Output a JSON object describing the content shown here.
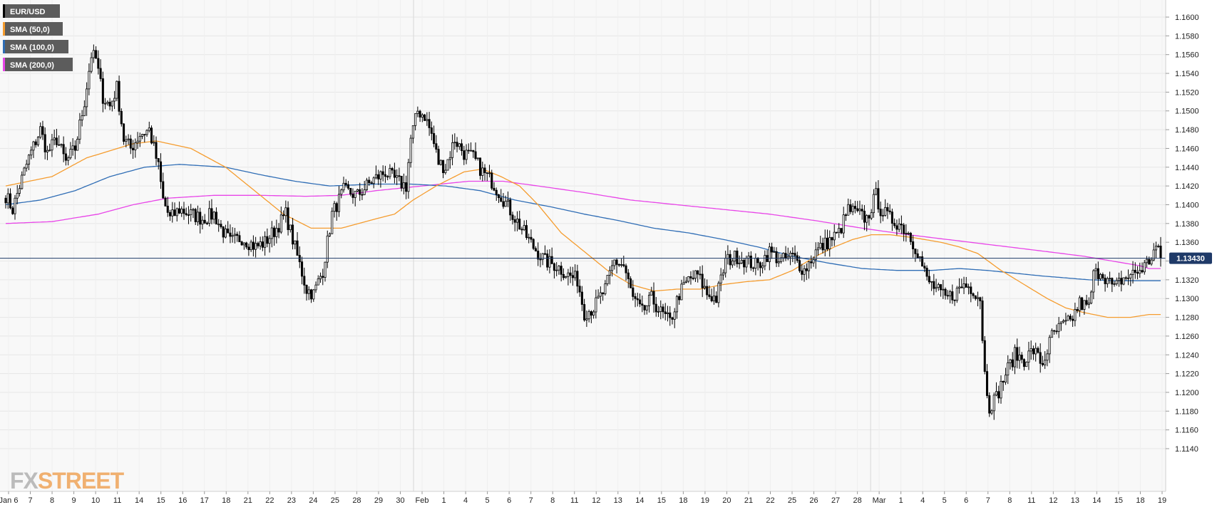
{
  "chart_data": {
    "type": "candlestick",
    "symbol": "EUR/USD",
    "timeframe": "4h",
    "ylim": [
      1.113,
      1.161
    ],
    "y_ticks": [
      "1.1600",
      "1.1580",
      "1.1560",
      "1.1540",
      "1.1520",
      "1.1500",
      "1.1480",
      "1.1460",
      "1.1440",
      "1.1420",
      "1.1400",
      "1.1380",
      "1.1360",
      "1.1340",
      "1.1320",
      "1.1300",
      "1.1280",
      "1.1260",
      "1.1240",
      "1.1220",
      "1.1200",
      "1.1180",
      "1.1160",
      "1.1140"
    ],
    "x_ticks": [
      "Jan 6",
      "7",
      "8",
      "9",
      "10",
      "11",
      "14",
      "15",
      "16",
      "17",
      "18",
      "21",
      "22",
      "23",
      "24",
      "25",
      "28",
      "29",
      "30",
      "Feb",
      "1",
      "4",
      "5",
      "6",
      "7",
      "8",
      "11",
      "12",
      "13",
      "14",
      "15",
      "18",
      "19",
      "20",
      "21",
      "22",
      "25",
      "26",
      "27",
      "28",
      "Mar",
      "1",
      "4",
      "5",
      "6",
      "7",
      "8",
      "11",
      "12",
      "13",
      "14",
      "15",
      "18",
      "19"
    ],
    "month_breaks": [
      "Feb",
      "Mar"
    ],
    "current_price": "1.13430",
    "legend": [
      {
        "label": "EUR/USD",
        "color": "#000000"
      },
      {
        "label": "SMA (50,0)",
        "color": "#f59c2e"
      },
      {
        "label": "SMA (100,0)",
        "color": "#2f6db5"
      },
      {
        "label": "SMA (200,0)",
        "color": "#e845e8"
      }
    ],
    "close_path": [
      [
        0,
        1.141
      ],
      [
        3,
        1.1395
      ],
      [
        6,
        1.142
      ],
      [
        10,
        1.145
      ],
      [
        15,
        1.148
      ],
      [
        18,
        1.1455
      ],
      [
        22,
        1.147
      ],
      [
        26,
        1.1445
      ],
      [
        30,
        1.146
      ],
      [
        34,
        1.151
      ],
      [
        37,
        1.156
      ],
      [
        39,
        1.1555
      ],
      [
        42,
        1.1515
      ],
      [
        45,
        1.1505
      ],
      [
        48,
        1.1525
      ],
      [
        51,
        1.147
      ],
      [
        54,
        1.146
      ],
      [
        58,
        1.1475
      ],
      [
        62,
        1.148
      ],
      [
        66,
        1.144
      ],
      [
        68,
        1.1405
      ],
      [
        71,
        1.1385
      ],
      [
        75,
        1.1395
      ],
      [
        80,
        1.139
      ],
      [
        85,
        1.1385
      ],
      [
        90,
        1.139
      ],
      [
        93,
        1.1375
      ],
      [
        97,
        1.136
      ],
      [
        102,
        1.1365
      ],
      [
        108,
        1.1355
      ],
      [
        112,
        1.136
      ],
      [
        117,
        1.1375
      ],
      [
        121,
        1.139
      ],
      [
        126,
        1.1345
      ],
      [
        130,
        1.131
      ],
      [
        133,
        1.1305
      ],
      [
        137,
        1.133
      ],
      [
        141,
        1.139
      ],
      [
        146,
        1.1415
      ],
      [
        152,
        1.141
      ],
      [
        158,
        1.1425
      ],
      [
        164,
        1.1435
      ],
      [
        169,
        1.1425
      ],
      [
        173,
        1.142
      ],
      [
        175,
        1.147
      ],
      [
        178,
        1.15
      ],
      [
        181,
        1.1495
      ],
      [
        184,
        1.1475
      ],
      [
        187,
        1.1445
      ],
      [
        190,
        1.144
      ],
      [
        194,
        1.147
      ],
      [
        198,
        1.1455
      ],
      [
        202,
        1.145
      ],
      [
        206,
        1.1435
      ],
      [
        210,
        1.1425
      ],
      [
        214,
        1.141
      ],
      [
        219,
        1.139
      ],
      [
        224,
        1.137
      ],
      [
        228,
        1.1355
      ],
      [
        233,
        1.134
      ],
      [
        238,
        1.1335
      ],
      [
        243,
        1.1325
      ],
      [
        247,
        1.132
      ],
      [
        250,
        1.1285
      ],
      [
        254,
        1.129
      ],
      [
        259,
        1.131
      ],
      [
        263,
        1.134
      ],
      [
        267,
        1.1335
      ],
      [
        271,
        1.13
      ],
      [
        275,
        1.1285
      ],
      [
        279,
        1.13
      ],
      [
        283,
        1.1285
      ],
      [
        287,
        1.1275
      ],
      [
        291,
        1.1305
      ],
      [
        295,
        1.132
      ],
      [
        299,
        1.1325
      ],
      [
        303,
        1.1305
      ],
      [
        307,
        1.13
      ],
      [
        311,
        1.134
      ],
      [
        316,
        1.1345
      ],
      [
        320,
        1.134
      ],
      [
        325,
        1.1335
      ],
      [
        330,
        1.135
      ],
      [
        335,
        1.134
      ],
      [
        340,
        1.1345
      ],
      [
        345,
        1.133
      ],
      [
        350,
        1.135
      ],
      [
        355,
        1.136
      ],
      [
        360,
        1.137
      ],
      [
        364,
        1.1395
      ],
      [
        368,
        1.139
      ],
      [
        372,
        1.1385
      ],
      [
        376,
        1.141
      ],
      [
        378,
        1.1395
      ],
      [
        382,
        1.1385
      ],
      [
        386,
        1.138
      ],
      [
        390,
        1.137
      ],
      [
        394,
        1.135
      ],
      [
        398,
        1.132
      ],
      [
        402,
        1.131
      ],
      [
        406,
        1.13
      ],
      [
        410,
        1.1305
      ],
      [
        414,
        1.1315
      ],
      [
        418,
        1.131
      ],
      [
        421,
        1.13
      ],
      [
        423,
        1.122
      ],
      [
        425,
        1.1185
      ],
      [
        428,
        1.1195
      ],
      [
        432,
        1.122
      ],
      [
        436,
        1.124
      ],
      [
        440,
        1.1235
      ],
      [
        444,
        1.1245
      ],
      [
        448,
        1.123
      ],
      [
        452,
        1.126
      ],
      [
        456,
        1.127
      ],
      [
        460,
        1.1275
      ],
      [
        464,
        1.1295
      ],
      [
        468,
        1.129
      ],
      [
        470,
        1.1325
      ],
      [
        473,
        1.133
      ],
      [
        476,
        1.132
      ],
      [
        479,
        1.131
      ],
      [
        482,
        1.132
      ],
      [
        486,
        1.1325
      ],
      [
        490,
        1.133
      ],
      [
        494,
        1.134
      ],
      [
        497,
        1.1355
      ],
      [
        499,
        1.1343
      ]
    ],
    "sma50": [
      [
        0,
        1.142
      ],
      [
        20,
        1.143
      ],
      [
        35,
        1.145
      ],
      [
        55,
        1.1465
      ],
      [
        65,
        1.1468
      ],
      [
        80,
        1.146
      ],
      [
        95,
        1.144
      ],
      [
        110,
        1.141
      ],
      [
        120,
        1.139
      ],
      [
        132,
        1.1375
      ],
      [
        145,
        1.1375
      ],
      [
        160,
        1.1385
      ],
      [
        168,
        1.139
      ],
      [
        176,
        1.1405
      ],
      [
        186,
        1.142
      ],
      [
        198,
        1.1435
      ],
      [
        206,
        1.1438
      ],
      [
        214,
        1.143
      ],
      [
        222,
        1.142
      ],
      [
        230,
        1.14
      ],
      [
        240,
        1.137
      ],
      [
        250,
        1.135
      ],
      [
        260,
        1.133
      ],
      [
        270,
        1.1315
      ],
      [
        280,
        1.1308
      ],
      [
        290,
        1.131
      ],
      [
        300,
        1.131
      ],
      [
        310,
        1.1315
      ],
      [
        320,
        1.1318
      ],
      [
        330,
        1.132
      ],
      [
        340,
        1.133
      ],
      [
        350,
        1.1345
      ],
      [
        358,
        1.1355
      ],
      [
        366,
        1.1363
      ],
      [
        374,
        1.1368
      ],
      [
        382,
        1.1368
      ],
      [
        392,
        1.1365
      ],
      [
        404,
        1.136
      ],
      [
        412,
        1.1355
      ],
      [
        420,
        1.1348
      ],
      [
        430,
        1.133
      ],
      [
        440,
        1.1315
      ],
      [
        450,
        1.13
      ],
      [
        458,
        1.129
      ],
      [
        466,
        1.1285
      ],
      [
        476,
        1.128
      ],
      [
        486,
        1.128
      ],
      [
        494,
        1.1283
      ]
    ],
    "sma100": [
      [
        0,
        1.14
      ],
      [
        15,
        1.1405
      ],
      [
        30,
        1.1415
      ],
      [
        45,
        1.143
      ],
      [
        60,
        1.144
      ],
      [
        75,
        1.1443
      ],
      [
        95,
        1.144
      ],
      [
        110,
        1.1432
      ],
      [
        125,
        1.1425
      ],
      [
        140,
        1.142
      ],
      [
        160,
        1.1422
      ],
      [
        175,
        1.1422
      ],
      [
        190,
        1.142
      ],
      [
        205,
        1.1415
      ],
      [
        220,
        1.1405
      ],
      [
        235,
        1.1398
      ],
      [
        250,
        1.139
      ],
      [
        265,
        1.1383
      ],
      [
        280,
        1.1375
      ],
      [
        295,
        1.137
      ],
      [
        310,
        1.1363
      ],
      [
        325,
        1.1355
      ],
      [
        340,
        1.1345
      ],
      [
        355,
        1.1338
      ],
      [
        370,
        1.1332
      ],
      [
        385,
        1.133
      ],
      [
        400,
        1.133
      ],
      [
        412,
        1.1332
      ],
      [
        424,
        1.133
      ],
      [
        436,
        1.1327
      ],
      [
        448,
        1.1324
      ],
      [
        458,
        1.1322
      ],
      [
        468,
        1.132
      ],
      [
        480,
        1.1319
      ],
      [
        494,
        1.1319
      ]
    ],
    "sma200": [
      [
        0,
        1.138
      ],
      [
        20,
        1.1382
      ],
      [
        40,
        1.139
      ],
      [
        55,
        1.14
      ],
      [
        70,
        1.1407
      ],
      [
        90,
        1.141
      ],
      [
        110,
        1.141
      ],
      [
        130,
        1.1409
      ],
      [
        145,
        1.141
      ],
      [
        160,
        1.1415
      ],
      [
        180,
        1.142
      ],
      [
        200,
        1.1425
      ],
      [
        215,
        1.1425
      ],
      [
        230,
        1.142
      ],
      [
        250,
        1.1413
      ],
      [
        270,
        1.1405
      ],
      [
        290,
        1.14
      ],
      [
        310,
        1.1395
      ],
      [
        330,
        1.139
      ],
      [
        350,
        1.1383
      ],
      [
        370,
        1.1375
      ],
      [
        390,
        1.1368
      ],
      [
        410,
        1.1362
      ],
      [
        430,
        1.1356
      ],
      [
        450,
        1.135
      ],
      [
        466,
        1.1345
      ],
      [
        478,
        1.134
      ],
      [
        490,
        1.1335
      ],
      [
        494,
        1.1332
      ]
    ]
  },
  "watermark": {
    "prefix": "FX",
    "suffix": "STREET"
  }
}
